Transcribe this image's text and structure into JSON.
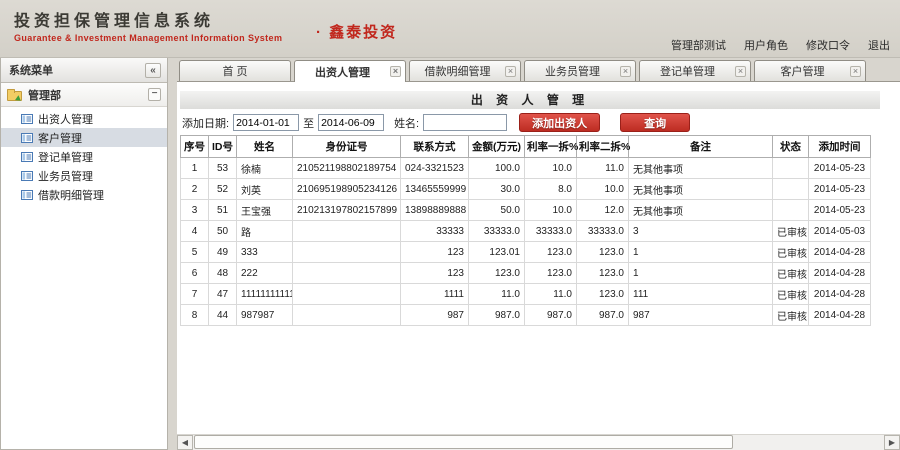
{
  "colors": {
    "chrome": "#d8d5ce",
    "accent": "#c1271d",
    "band-from": "#f3f3f2",
    "band-to": "#dcdcda",
    "btn-from": "#e0534a",
    "btn-to": "#bd2c22",
    "btn-border": "#9a2019",
    "sel-item": "#d7dce3"
  },
  "header": {
    "title": "投资担保管理信息系统",
    "subtitle": "Guarantee & Investment Management Information System",
    "brand": "· 鑫泰投资",
    "links": [
      "管理部测试",
      "用户角色",
      "修改口令",
      "退出"
    ]
  },
  "sidebar": {
    "title": "系统菜单",
    "collapse_icon": "«",
    "group_label": "管理部",
    "group_toggle": "−",
    "items": [
      {
        "label": "出资人管理",
        "selected": false
      },
      {
        "label": "客户管理",
        "selected": true
      },
      {
        "label": "登记单管理",
        "selected": false
      },
      {
        "label": "业务员管理",
        "selected": false
      },
      {
        "label": "借款明细管理",
        "selected": false
      }
    ]
  },
  "tabs": [
    {
      "label": "首 页",
      "active": false,
      "closable": false
    },
    {
      "label": "出资人管理",
      "active": true,
      "closable": true
    },
    {
      "label": "借款明细管理",
      "active": false,
      "closable": true
    },
    {
      "label": "业务员管理",
      "active": false,
      "closable": true
    },
    {
      "label": "登记单管理",
      "active": false,
      "closable": true
    },
    {
      "label": "客户管理",
      "active": false,
      "closable": true
    }
  ],
  "main": {
    "title": "出 资 人 管 理",
    "filter": {
      "date_label": "添加日期:",
      "date_from": "2014-01-01",
      "to_label": "至",
      "date_to": "2014-06-09",
      "name_label": "姓名:",
      "name_value": "",
      "add_button": "添加出资人",
      "query_button": "查询"
    },
    "table": {
      "columns": [
        "序号",
        "ID号",
        "姓名",
        "身份证号",
        "联系方式",
        "金额(万元)",
        "利率一拆%",
        "利率二拆%",
        "备注",
        "状态",
        "添加时间"
      ],
      "rows": [
        [
          "1",
          "53",
          "徐楠",
          "210521198802189754",
          "024-3321523",
          "100.0",
          "10.0",
          "11.0",
          "无其他事项",
          "",
          "2014-05-23"
        ],
        [
          "2",
          "52",
          "刘英",
          "210695198905234126",
          "13465559999",
          "30.0",
          "8.0",
          "10.0",
          "无其他事项",
          "",
          "2014-05-23"
        ],
        [
          "3",
          "51",
          "王宝强",
          "210213197802157899",
          "13898889888",
          "50.0",
          "10.0",
          "12.0",
          "无其他事项",
          "",
          "2014-05-23"
        ],
        [
          "4",
          "50",
          "路",
          "",
          "33333",
          "33333.0",
          "33333.0",
          "33333.0",
          "3",
          "已审核",
          "2014-05-03"
        ],
        [
          "5",
          "49",
          "333",
          "",
          "123",
          "123.01",
          "123.0",
          "123.0",
          "1",
          "已审核",
          "2014-04-28"
        ],
        [
          "6",
          "48",
          "222",
          "",
          "123",
          "123.0",
          "123.0",
          "123.0",
          "1",
          "已审核",
          "2014-04-28"
        ],
        [
          "7",
          "47",
          "11111111111",
          "",
          "1111",
          "11.0",
          "11.0",
          "123.0",
          "111",
          "已审核",
          "2014-04-28"
        ],
        [
          "8",
          "44",
          "987987",
          "",
          "987",
          "987.0",
          "987.0",
          "987.0",
          "987",
          "已审核",
          "2014-04-28"
        ]
      ]
    }
  },
  "scrollbar": {
    "left_icon": "◀",
    "right_icon": "▶"
  }
}
